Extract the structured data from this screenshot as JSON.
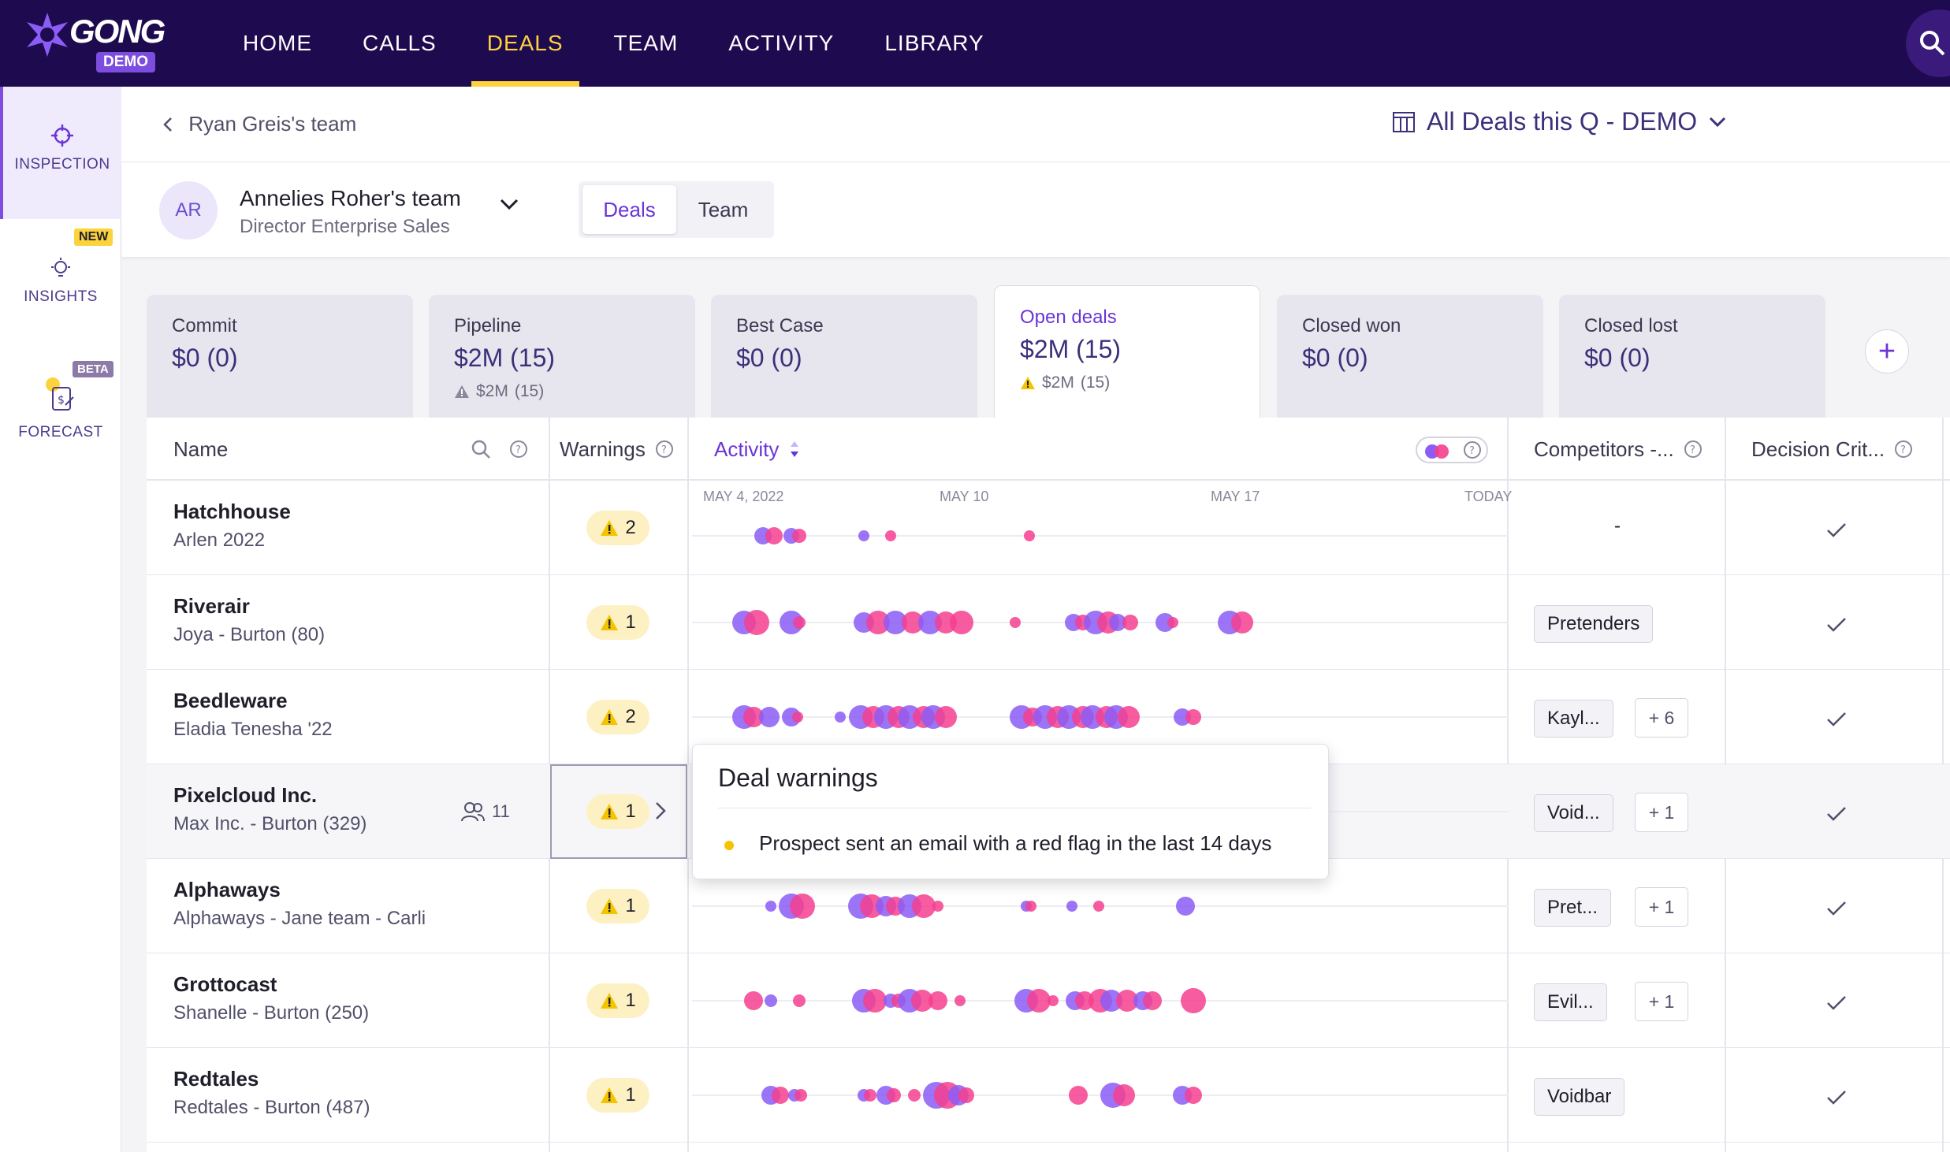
{
  "brand": {
    "name": "GONG",
    "badge": "DEMO"
  },
  "nav": [
    "HOME",
    "CALLS",
    "DEALS",
    "TEAM",
    "ACTIVITY",
    "LIBRARY"
  ],
  "nav_active": "DEALS",
  "rail": [
    {
      "label": "INSPECTION",
      "icon": "crosshair-icon",
      "active": true
    },
    {
      "label": "INSIGHTS",
      "icon": "lightbulb-icon",
      "badge": "NEW"
    },
    {
      "label": "FORECAST",
      "icon": "forecast-icon",
      "badge": "BETA"
    }
  ],
  "breadcrumb": "Ryan Greis's team",
  "board": {
    "label": "All Deals this Q - DEMO",
    "icon": "board-icon"
  },
  "team": {
    "initials": "AR",
    "name": "Annelies Roher's team",
    "title": "Director Enterprise Sales"
  },
  "toggle": {
    "options": [
      "Deals",
      "Team"
    ],
    "selected": "Deals"
  },
  "cards": [
    {
      "label": "Commit",
      "value": "$0 (0)"
    },
    {
      "label": "Pipeline",
      "value": "$2M (15)",
      "warn_amount": "$2M",
      "warn_count": "(15)"
    },
    {
      "label": "Best Case",
      "value": "$0 (0)"
    },
    {
      "label": "Open deals",
      "value": "$2M (15)",
      "warn_amount": "$2M",
      "warn_count": "(15)",
      "active": true
    },
    {
      "label": "Closed won",
      "value": "$0 (0)"
    },
    {
      "label": "Closed lost",
      "value": "$0 (0)"
    }
  ],
  "columns": {
    "name": "Name",
    "warnings": "Warnings",
    "activity": "Activity",
    "competitors": "Competitors -...",
    "decision": "Decision Crit..."
  },
  "timeline_dates": [
    "MAY 4, 2022",
    "MAY 10",
    "MAY 17",
    "TODAY"
  ],
  "rows": [
    {
      "name": "Hatchhouse",
      "sub": "Arlen 2022",
      "warnings": "2",
      "competitor": "-",
      "more": ""
    },
    {
      "name": "Riverair",
      "sub": "Joya - Burton (80)",
      "warnings": "1",
      "competitor": "Pretenders",
      "more": ""
    },
    {
      "name": "Beedleware",
      "sub": "Eladia Tenesha '22",
      "warnings": "2",
      "competitor": "Kayl...",
      "more": "+ 6"
    },
    {
      "name": "Pixelcloud Inc.",
      "sub": "Max Inc. - Burton (329)",
      "warnings": "1",
      "competitor": "Void...",
      "more": "+ 1",
      "members": "11"
    },
    {
      "name": "Alphaways",
      "sub": "Alphaways - Jane team - Carli",
      "warnings": "1",
      "competitor": "Pret...",
      "more": "+ 1"
    },
    {
      "name": "Grottocast",
      "sub": "Shanelle - Burton (250)",
      "warnings": "1",
      "competitor": "Evil...",
      "more": "+ 1"
    },
    {
      "name": "Redtales",
      "sub": "Redtales - Burton (487)",
      "warnings": "1",
      "competitor": "Voidbar",
      "more": ""
    }
  ],
  "tooltip": {
    "title": "Deal warnings",
    "item": "Prospect sent an email with a red flag in the last 14 days"
  },
  "colors": {
    "topbar": "#1e0a4e",
    "accent": "#6a35d8",
    "highlight": "#fcd33d",
    "activity_a": "#8b5cf6",
    "activity_b": "#f43f8e"
  }
}
